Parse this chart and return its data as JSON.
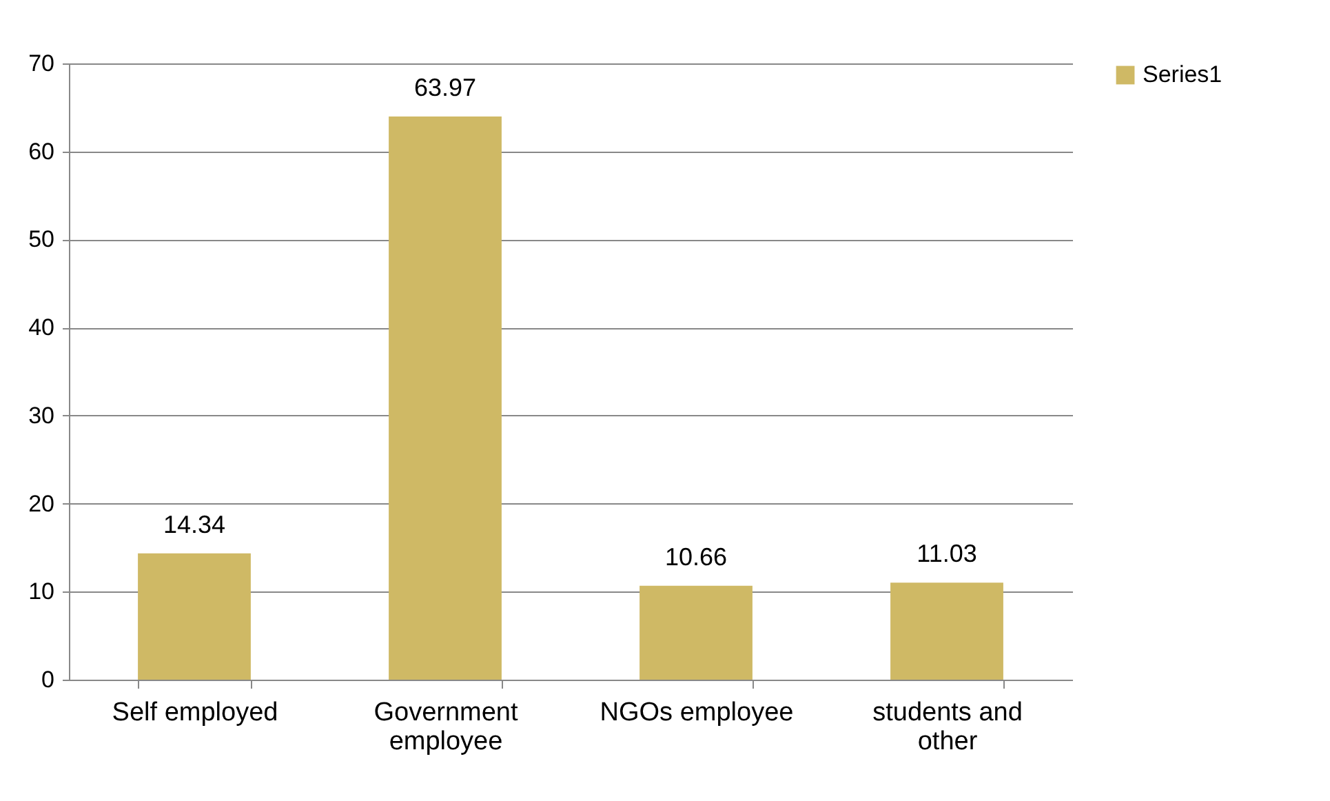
{
  "chart_data": {
    "type": "bar",
    "categories": [
      "Self employed",
      "Government employee",
      "NGOs employee",
      "students and other"
    ],
    "series": [
      {
        "name": "Series1",
        "color": "#cfb965",
        "values": [
          14.34,
          63.97,
          10.66,
          11.03
        ]
      }
    ],
    "ylim": [
      0,
      70
    ],
    "yticks": [
      0,
      10,
      20,
      30,
      40,
      50,
      60,
      70
    ],
    "grid": "y",
    "legend": "right",
    "data_labels": true
  }
}
